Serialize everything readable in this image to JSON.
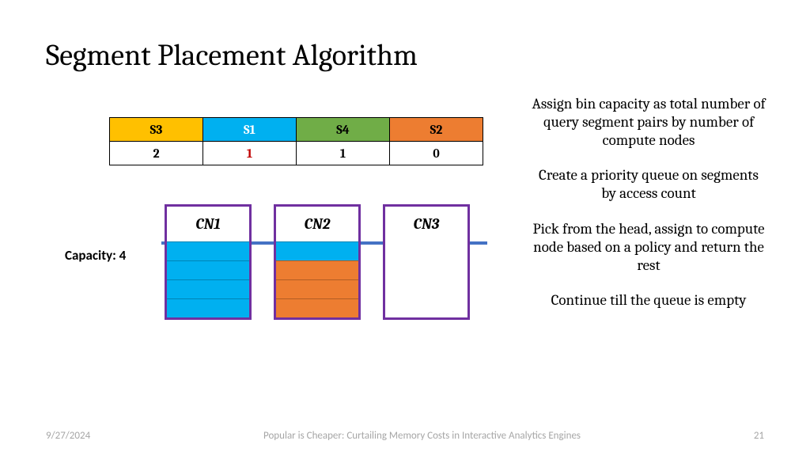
{
  "title": "Segment Placement Algorithm",
  "segments": [
    {
      "label": "S3",
      "value": "2",
      "bg": "#ffc000",
      "fg": "#000000",
      "val_color": "#000000"
    },
    {
      "label": "S1",
      "value": "1",
      "bg": "#00b0f0",
      "fg": "#ffffff",
      "val_color": "#c00000"
    },
    {
      "label": "S4",
      "value": "1",
      "bg": "#70ad47",
      "fg": "#000000",
      "val_color": "#000000"
    },
    {
      "label": "S2",
      "value": "0",
      "bg": "#ed7d31",
      "fg": "#000000",
      "val_color": "#000000"
    }
  ],
  "capacity_label": "Capacity: 4",
  "bins": [
    {
      "label": "CN1",
      "slots": [
        "#00b0f0",
        "#00b0f0",
        "#00b0f0",
        "#00b0f0"
      ],
      "capacity": 4
    },
    {
      "label": "CN2",
      "slots": [
        "#ed7d31",
        "#ed7d31",
        "#ed7d31",
        "#00b0f0"
      ],
      "capacity": 4
    },
    {
      "label": "CN3",
      "slots": [
        "#ffffff",
        "#ffffff",
        "#ffffff",
        "#ffffff"
      ],
      "capacity": 4
    }
  ],
  "bin_border_color": "#7030a0",
  "capacity_line_color": "#4472c4",
  "bullets": [
    "Assign bin capacity as total number of query segment pairs by number of compute nodes",
    "Create a priority queue on segments by access count",
    "Pick from the head, assign to compute node based on a policy and return the rest",
    "Continue till the queue is empty"
  ],
  "footer": {
    "date": "9/27/2024",
    "caption": "Popular is Cheaper: Curtailing Memory Costs in Interactive Analytics Engines",
    "page": "21"
  }
}
